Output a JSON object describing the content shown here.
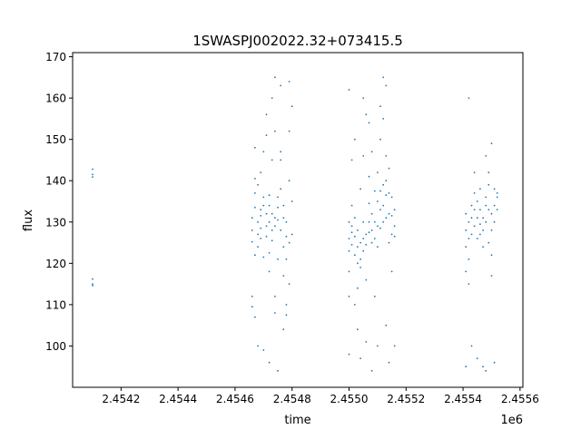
{
  "chart_data": {
    "type": "scatter",
    "title": "1SWASPJ002022.32+073415.5",
    "xlabel": "time",
    "ylabel": "flux",
    "x_offset_label": "1e6",
    "xlim": [
      2.45403,
      2.45561
    ],
    "ylim": [
      90,
      171
    ],
    "x_ticks": [
      2.4542,
      2.4544,
      2.4546,
      2.4548,
      2.455,
      2.4552,
      2.4554,
      2.4556
    ],
    "x_tick_labels": [
      "2.4542",
      "2.4544",
      "2.4546",
      "2.4548",
      "2.4550",
      "2.4552",
      "2.4554",
      "2.4556"
    ],
    "y_ticks": [
      100,
      110,
      120,
      130,
      140,
      150,
      160,
      170
    ],
    "y_tick_labels": [
      "100",
      "110",
      "120",
      "130",
      "140",
      "150",
      "160",
      "170"
    ],
    "grid": false,
    "marker_color": "#1f77b4",
    "series": [
      {
        "points": [
          [
            2.4541,
            141.5
          ],
          [
            2.4541,
            142.8
          ],
          [
            2.4541,
            140.9
          ],
          [
            2.4541,
            115.0
          ],
          [
            2.4541,
            116.2
          ],
          [
            2.4541,
            114.6
          ],
          [
            2.45466,
            131.0
          ],
          [
            2.45466,
            128.0
          ],
          [
            2.45466,
            125.2
          ],
          [
            2.45466,
            112.0
          ],
          [
            2.45466,
            109.5
          ],
          [
            2.45467,
            137.0
          ],
          [
            2.45467,
            140.5
          ],
          [
            2.45467,
            133.5
          ],
          [
            2.45467,
            122.0
          ],
          [
            2.45467,
            107.0
          ],
          [
            2.45467,
            148.0
          ],
          [
            2.45468,
            130.0
          ],
          [
            2.45468,
            127.0
          ],
          [
            2.45468,
            124.0
          ],
          [
            2.45468,
            139.0
          ],
          [
            2.45468,
            100.0
          ],
          [
            2.45469,
            133.0
          ],
          [
            2.45469,
            131.5
          ],
          [
            2.45469,
            128.5
          ],
          [
            2.45469,
            126.0
          ],
          [
            2.45469,
            142.0
          ],
          [
            2.4547,
            136.0
          ],
          [
            2.4547,
            134.0
          ],
          [
            2.4547,
            121.5
          ],
          [
            2.4547,
            147.0
          ],
          [
            2.4547,
            99.0
          ],
          [
            2.45471,
            129.0
          ],
          [
            2.45471,
            132.0
          ],
          [
            2.45471,
            126.5
          ],
          [
            2.45471,
            151.0
          ],
          [
            2.45471,
            156.0
          ],
          [
            2.45472,
            134.0
          ],
          [
            2.45472,
            136.5
          ],
          [
            2.45472,
            130.0
          ],
          [
            2.45472,
            122.5
          ],
          [
            2.45472,
            118.0
          ],
          [
            2.45472,
            96.0
          ],
          [
            2.45473,
            132.0
          ],
          [
            2.45473,
            128.0
          ],
          [
            2.45473,
            125.5
          ],
          [
            2.45473,
            145.0
          ],
          [
            2.45473,
            160.0
          ],
          [
            2.45474,
            131.0
          ],
          [
            2.45474,
            129.0
          ],
          [
            2.45474,
            112.0
          ],
          [
            2.45474,
            108.0
          ],
          [
            2.45474,
            152.0
          ],
          [
            2.45474,
            165.0
          ],
          [
            2.45475,
            136.0
          ],
          [
            2.45475,
            133.5
          ],
          [
            2.45475,
            130.5
          ],
          [
            2.45475,
            121.0
          ],
          [
            2.45475,
            94.0
          ],
          [
            2.45476,
            147.0
          ],
          [
            2.45476,
            145.0
          ],
          [
            2.45476,
            138.0
          ],
          [
            2.45476,
            128.0
          ],
          [
            2.45476,
            163.0
          ],
          [
            2.45477,
            134.0
          ],
          [
            2.45477,
            131.0
          ],
          [
            2.45477,
            124.0
          ],
          [
            2.45477,
            117.0
          ],
          [
            2.45477,
            104.0
          ],
          [
            2.45478,
            130.0
          ],
          [
            2.45478,
            126.5
          ],
          [
            2.45478,
            121.0
          ],
          [
            2.45478,
            110.0
          ],
          [
            2.45478,
            107.5
          ],
          [
            2.45479,
            125.0
          ],
          [
            2.45479,
            140.0
          ],
          [
            2.45479,
            152.0
          ],
          [
            2.45479,
            164.0
          ],
          [
            2.45479,
            115.0
          ],
          [
            2.4548,
            135.0
          ],
          [
            2.4548,
            127.0
          ],
          [
            2.4548,
            158.0
          ],
          [
            2.455,
            130.0
          ],
          [
            2.455,
            126.0
          ],
          [
            2.455,
            123.0
          ],
          [
            2.455,
            118.0
          ],
          [
            2.455,
            112.0
          ],
          [
            2.455,
            162.0
          ],
          [
            2.455,
            98.0
          ],
          [
            2.45501,
            129.0
          ],
          [
            2.45501,
            127.5
          ],
          [
            2.45501,
            124.5
          ],
          [
            2.45501,
            134.0
          ],
          [
            2.45501,
            145.0
          ],
          [
            2.45502,
            131.0
          ],
          [
            2.45502,
            126.5
          ],
          [
            2.45502,
            122.0
          ],
          [
            2.45502,
            110.0
          ],
          [
            2.45502,
            150.0
          ],
          [
            2.45503,
            128.0
          ],
          [
            2.45503,
            124.0
          ],
          [
            2.45503,
            120.0
          ],
          [
            2.45503,
            114.0
          ],
          [
            2.45503,
            104.0
          ],
          [
            2.45504,
            125.0
          ],
          [
            2.45504,
            121.0
          ],
          [
            2.45504,
            119.0
          ],
          [
            2.45504,
            138.0
          ],
          [
            2.45504,
            97.0
          ],
          [
            2.45505,
            126.0
          ],
          [
            2.45505,
            123.0
          ],
          [
            2.45505,
            130.0
          ],
          [
            2.45505,
            146.0
          ],
          [
            2.45505,
            160.0
          ],
          [
            2.45506,
            127.0
          ],
          [
            2.45506,
            124.5
          ],
          [
            2.45506,
            116.0
          ],
          [
            2.45506,
            156.0
          ],
          [
            2.45506,
            101.0
          ],
          [
            2.45507,
            130.0
          ],
          [
            2.45507,
            127.5
          ],
          [
            2.45507,
            134.5
          ],
          [
            2.45507,
            141.0
          ],
          [
            2.45507,
            154.0
          ],
          [
            2.45508,
            132.0
          ],
          [
            2.45508,
            128.0
          ],
          [
            2.45508,
            125.0
          ],
          [
            2.45508,
            147.0
          ],
          [
            2.45508,
            94.0
          ],
          [
            2.45509,
            130.0
          ],
          [
            2.45509,
            126.0
          ],
          [
            2.45509,
            137.5
          ],
          [
            2.45509,
            112.0
          ],
          [
            2.4551,
            135.0
          ],
          [
            2.4551,
            129.0
          ],
          [
            2.4551,
            124.0
          ],
          [
            2.4551,
            142.0
          ],
          [
            2.4551,
            100.0
          ],
          [
            2.45511,
            137.5
          ],
          [
            2.45511,
            133.0
          ],
          [
            2.45511,
            128.5
          ],
          [
            2.45511,
            150.0
          ],
          [
            2.45511,
            158.0
          ],
          [
            2.45512,
            139.0
          ],
          [
            2.45512,
            134.0
          ],
          [
            2.45512,
            130.0
          ],
          [
            2.45512,
            155.0
          ],
          [
            2.45512,
            165.0
          ],
          [
            2.45513,
            140.0
          ],
          [
            2.45513,
            136.5
          ],
          [
            2.45513,
            131.0
          ],
          [
            2.45513,
            146.0
          ],
          [
            2.45513,
            163.0
          ],
          [
            2.45513,
            105.0
          ],
          [
            2.45514,
            143.0
          ],
          [
            2.45514,
            137.0
          ],
          [
            2.45514,
            132.0
          ],
          [
            2.45514,
            125.0
          ],
          [
            2.45514,
            96.0
          ],
          [
            2.45515,
            136.0
          ],
          [
            2.45515,
            131.5
          ],
          [
            2.45515,
            127.0
          ],
          [
            2.45515,
            118.0
          ],
          [
            2.45516,
            133.0
          ],
          [
            2.45516,
            129.0
          ],
          [
            2.45516,
            126.5
          ],
          [
            2.45516,
            100.0
          ],
          [
            2.45541,
            132.0
          ],
          [
            2.45541,
            128.0
          ],
          [
            2.45541,
            124.0
          ],
          [
            2.45541,
            118.0
          ],
          [
            2.45541,
            95.0
          ],
          [
            2.45542,
            130.0
          ],
          [
            2.45542,
            126.0
          ],
          [
            2.45542,
            121.0
          ],
          [
            2.45542,
            115.0
          ],
          [
            2.45542,
            160.0
          ],
          [
            2.45543,
            134.0
          ],
          [
            2.45543,
            131.0
          ],
          [
            2.45543,
            127.0
          ],
          [
            2.45543,
            100.0
          ],
          [
            2.45544,
            137.0
          ],
          [
            2.45544,
            133.0
          ],
          [
            2.45544,
            129.0
          ],
          [
            2.45544,
            142.0
          ],
          [
            2.45545,
            135.0
          ],
          [
            2.45545,
            131.0
          ],
          [
            2.45545,
            126.0
          ],
          [
            2.45545,
            97.0
          ],
          [
            2.45546,
            133.0
          ],
          [
            2.45546,
            129.5
          ],
          [
            2.45546,
            127.0
          ],
          [
            2.45546,
            138.0
          ],
          [
            2.45547,
            131.0
          ],
          [
            2.45547,
            128.0
          ],
          [
            2.45547,
            124.0
          ],
          [
            2.45547,
            95.0
          ],
          [
            2.45548,
            136.0
          ],
          [
            2.45548,
            134.0
          ],
          [
            2.45548,
            130.0
          ],
          [
            2.45548,
            146.0
          ],
          [
            2.45548,
            94.0
          ],
          [
            2.45549,
            142.0
          ],
          [
            2.45549,
            139.0
          ],
          [
            2.45549,
            133.0
          ],
          [
            2.45549,
            125.0
          ],
          [
            2.4555,
            132.0
          ],
          [
            2.4555,
            128.0
          ],
          [
            2.4555,
            122.0
          ],
          [
            2.4555,
            117.0
          ],
          [
            2.4555,
            149.0
          ],
          [
            2.45551,
            138.0
          ],
          [
            2.45551,
            134.0
          ],
          [
            2.45551,
            130.0
          ],
          [
            2.45551,
            96.0
          ],
          [
            2.45552,
            137.0
          ],
          [
            2.45552,
            136.0
          ],
          [
            2.45552,
            133.0
          ]
        ]
      }
    ]
  }
}
